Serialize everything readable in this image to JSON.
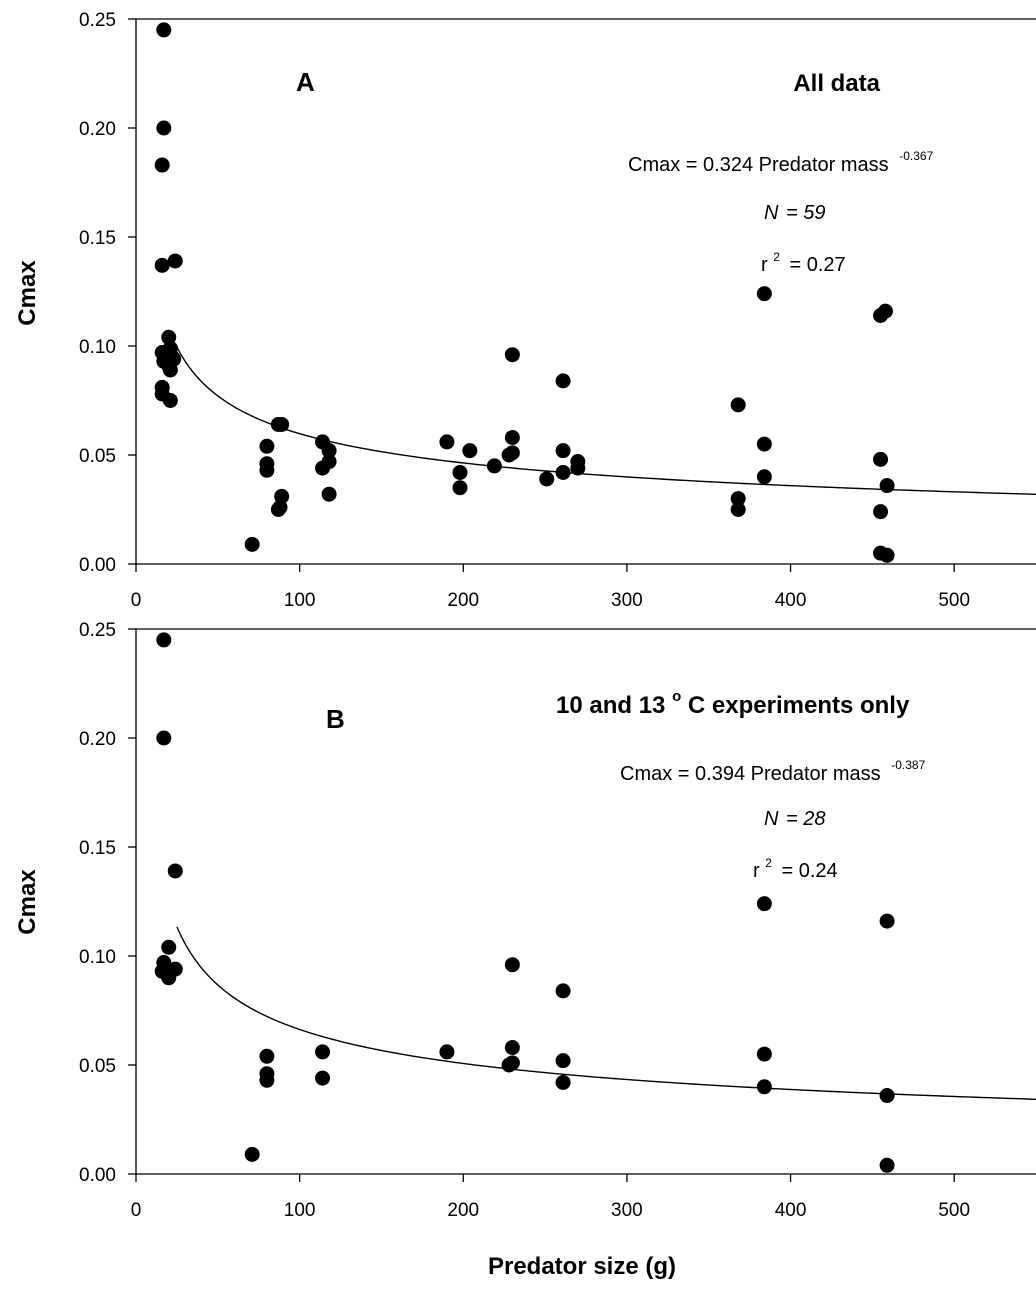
{
  "chart_data": [
    {
      "type": "scatter",
      "panel_label": "A",
      "subtitle": "All data",
      "xlabel": "",
      "ylabel": "Cmax",
      "xlim": [
        0,
        550
      ],
      "ylim": [
        0,
        0.25
      ],
      "x_ticks": [
        "0",
        "100",
        "200",
        "300",
        "400",
        "500"
      ],
      "y_ticks": [
        "0.00",
        "0.05",
        "0.10",
        "0.15",
        "0.20",
        "0.25"
      ],
      "equation": "Cmax = 0.324 Predator mass",
      "equation_exponent": "-0.367",
      "n_prefix": "N",
      "n_value": "= 59",
      "r2_base": "r",
      "r2_exponent": "2",
      "r2_value": "= 0.27",
      "fit": {
        "a": 0.324,
        "b": -0.367,
        "x_start": 25,
        "x_end": 550
      },
      "points": [
        [
          17,
          0.245
        ],
        [
          17,
          0.2
        ],
        [
          16,
          0.183
        ],
        [
          16,
          0.137
        ],
        [
          24,
          0.139
        ],
        [
          16,
          0.097
        ],
        [
          17,
          0.093
        ],
        [
          20,
          0.104
        ],
        [
          21,
          0.099
        ],
        [
          20,
          0.096
        ],
        [
          23,
          0.094
        ],
        [
          22,
          0.095
        ],
        [
          20,
          0.091
        ],
        [
          21,
          0.089
        ],
        [
          16,
          0.081
        ],
        [
          16,
          0.078
        ],
        [
          21,
          0.075
        ],
        [
          71,
          0.009
        ],
        [
          80,
          0.054
        ],
        [
          80,
          0.046
        ],
        [
          80,
          0.043
        ],
        [
          87,
          0.064
        ],
        [
          89,
          0.064
        ],
        [
          89,
          0.031
        ],
        [
          88,
          0.026
        ],
        [
          87,
          0.025
        ],
        [
          114,
          0.056
        ],
        [
          114,
          0.044
        ],
        [
          118,
          0.052
        ],
        [
          118,
          0.047
        ],
        [
          118,
          0.032
        ],
        [
          190,
          0.056
        ],
        [
          198,
          0.042
        ],
        [
          198,
          0.035
        ],
        [
          204,
          0.052
        ],
        [
          219,
          0.045
        ],
        [
          228,
          0.05
        ],
        [
          230,
          0.096
        ],
        [
          230,
          0.058
        ],
        [
          230,
          0.051
        ],
        [
          251,
          0.039
        ],
        [
          261,
          0.084
        ],
        [
          261,
          0.052
        ],
        [
          261,
          0.042
        ],
        [
          270,
          0.047
        ],
        [
          270,
          0.044
        ],
        [
          368,
          0.073
        ],
        [
          368,
          0.03
        ],
        [
          368,
          0.025
        ],
        [
          384,
          0.124
        ],
        [
          384,
          0.055
        ],
        [
          384,
          0.04
        ],
        [
          455,
          0.114
        ],
        [
          458,
          0.116
        ],
        [
          455,
          0.048
        ],
        [
          459,
          0.036
        ],
        [
          455,
          0.024
        ],
        [
          455,
          0.005
        ],
        [
          459,
          0.004
        ]
      ]
    },
    {
      "type": "scatter",
      "panel_label": "B",
      "subtitle_prefix": "10 and 13",
      "subtitle_degree": "o",
      "subtitle_suffix": " C experiments only",
      "xlabel": "Predator size (g)",
      "ylabel": "Cmax",
      "xlim": [
        0,
        550
      ],
      "ylim": [
        0,
        0.25
      ],
      "x_ticks": [
        "0",
        "100",
        "200",
        "300",
        "400",
        "500"
      ],
      "y_ticks": [
        "0.00",
        "0.05",
        "0.10",
        "0.15",
        "0.20",
        "0.25"
      ],
      "equation": "Cmax = 0.394 Predator mass",
      "equation_exponent": "-0.387",
      "n_prefix": "N",
      "n_value": "= 28",
      "r2_base": "r",
      "r2_exponent": "2",
      "r2_value": "= 0.24",
      "fit": {
        "a": 0.394,
        "b": -0.387,
        "x_start": 25,
        "x_end": 550
      },
      "points": [
        [
          17,
          0.245
        ],
        [
          17,
          0.2
        ],
        [
          24,
          0.139
        ],
        [
          20,
          0.104
        ],
        [
          17,
          0.097
        ],
        [
          24,
          0.094
        ],
        [
          16,
          0.093
        ],
        [
          20,
          0.09
        ],
        [
          71,
          0.009
        ],
        [
          80,
          0.054
        ],
        [
          80,
          0.046
        ],
        [
          80,
          0.043
        ],
        [
          114,
          0.056
        ],
        [
          114,
          0.044
        ],
        [
          190,
          0.056
        ],
        [
          228,
          0.05
        ],
        [
          230,
          0.096
        ],
        [
          230,
          0.058
        ],
        [
          230,
          0.051
        ],
        [
          261,
          0.084
        ],
        [
          261,
          0.052
        ],
        [
          261,
          0.042
        ],
        [
          384,
          0.124
        ],
        [
          384,
          0.055
        ],
        [
          384,
          0.04
        ],
        [
          459,
          0.116
        ],
        [
          459,
          0.036
        ],
        [
          459,
          0.004
        ]
      ]
    }
  ]
}
